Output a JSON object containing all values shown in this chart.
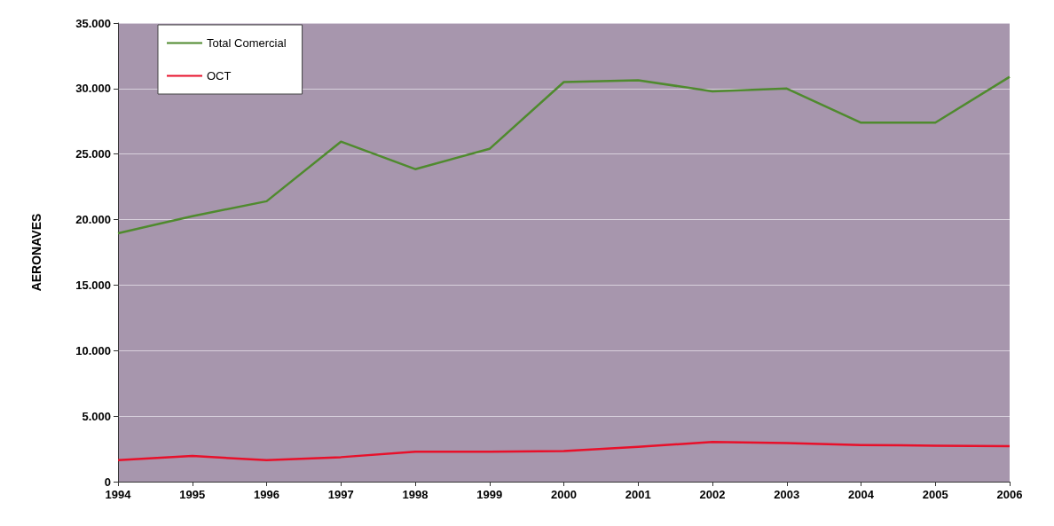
{
  "chart_data": {
    "type": "line",
    "ylabel": "AERONAVES",
    "categories": [
      "1994",
      "1995",
      "1996",
      "1997",
      "1998",
      "1999",
      "2000",
      "2001",
      "2002",
      "2003",
      "2004",
      "2005",
      "2006"
    ],
    "series": [
      {
        "name": "Total Comercial",
        "color": "#4f8a2e",
        "values": [
          18960,
          20260,
          21400,
          25950,
          23850,
          25400,
          30500,
          30640,
          29790,
          30000,
          27400,
          27400,
          30900
        ]
      },
      {
        "name": "OCT",
        "color": "#e8102a",
        "values": [
          1640,
          1960,
          1640,
          1870,
          2280,
          2280,
          2330,
          2650,
          3030,
          2950,
          2800,
          2750,
          2700
        ]
      }
    ],
    "ylim": [
      0,
      35000
    ],
    "yticks": [
      {
        "value": 0,
        "label": "0"
      },
      {
        "value": 5000,
        "label": "5.000"
      },
      {
        "value": 10000,
        "label": "10.000"
      },
      {
        "value": 15000,
        "label": "15.000"
      },
      {
        "value": 20000,
        "label": "20.000"
      },
      {
        "value": 25000,
        "label": "25.000"
      },
      {
        "value": 30000,
        "label": "30.000"
      },
      {
        "value": 35000,
        "label": "35.000"
      }
    ],
    "grid": "y",
    "legend": "top left",
    "marker": "none",
    "line_style": "solid"
  }
}
